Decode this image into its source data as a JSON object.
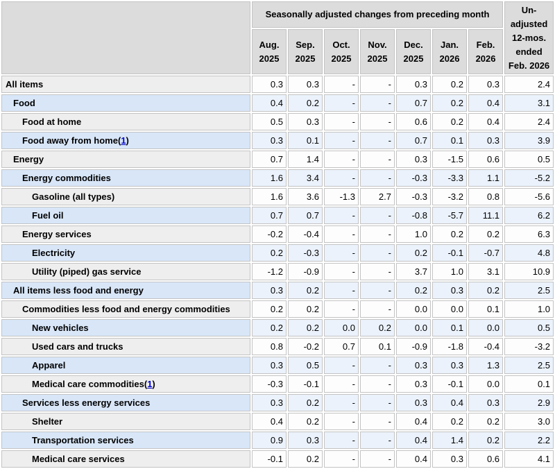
{
  "colors": {
    "header_bg": "#dcdcdc",
    "gray_label_bg": "#eeeeee",
    "gray_data_bg": "#fdfdfd",
    "blue_label_bg": "#d8e6f8",
    "blue_data_bg": "#ebf2fb",
    "border": "#c3c3c3",
    "text": "#000000",
    "link": "#0000cc"
  },
  "chart_data": {
    "type": "table",
    "title": "Seasonally adjusted changes from preceding month",
    "column_group_header": "Seasonally adjusted changes from preceding month",
    "last_column_header": "Un-adjusted 12-mos. ended Feb. 2026",
    "month_columns": [
      "Aug. 2025",
      "Sep. 2025",
      "Oct. 2025",
      "Nov. 2025",
      "Dec. 2025",
      "Jan. 2026",
      "Feb. 2026"
    ],
    "rows": [
      {
        "label": "All items",
        "indent": 0,
        "values": [
          "0.3",
          "0.3",
          "-",
          "-",
          "0.3",
          "0.2",
          "0.3",
          "2.4"
        ]
      },
      {
        "label": "Food",
        "indent": 1,
        "values": [
          "0.4",
          "0.2",
          "-",
          "-",
          "0.7",
          "0.2",
          "0.4",
          "3.1"
        ]
      },
      {
        "label": "Food at home",
        "indent": 2,
        "values": [
          "0.5",
          "0.3",
          "-",
          "-",
          "0.6",
          "0.2",
          "0.4",
          "2.4"
        ]
      },
      {
        "label": "Food away from home",
        "footnote": "1",
        "indent": 2,
        "values": [
          "0.3",
          "0.1",
          "-",
          "-",
          "0.7",
          "0.1",
          "0.3",
          "3.9"
        ]
      },
      {
        "label": "Energy",
        "indent": 1,
        "values": [
          "0.7",
          "1.4",
          "-",
          "-",
          "0.3",
          "-1.5",
          "0.6",
          "0.5"
        ]
      },
      {
        "label": "Energy commodities",
        "indent": 2,
        "values": [
          "1.6",
          "3.4",
          "-",
          "-",
          "-0.3",
          "-3.3",
          "1.1",
          "-5.2"
        ]
      },
      {
        "label": "Gasoline (all types)",
        "indent": 3,
        "values": [
          "1.6",
          "3.6",
          "-1.3",
          "2.7",
          "-0.3",
          "-3.2",
          "0.8",
          "-5.6"
        ]
      },
      {
        "label": "Fuel oil",
        "indent": 3,
        "values": [
          "0.7",
          "0.7",
          "-",
          "-",
          "-0.8",
          "-5.7",
          "11.1",
          "6.2"
        ]
      },
      {
        "label": "Energy services",
        "indent": 2,
        "values": [
          "-0.2",
          "-0.4",
          "-",
          "-",
          "1.0",
          "0.2",
          "0.2",
          "6.3"
        ]
      },
      {
        "label": "Electricity",
        "indent": 3,
        "values": [
          "0.2",
          "-0.3",
          "-",
          "-",
          "0.2",
          "-0.1",
          "-0.7",
          "4.8"
        ]
      },
      {
        "label": "Utility (piped) gas service",
        "indent": 3,
        "values": [
          "-1.2",
          "-0.9",
          "-",
          "-",
          "3.7",
          "1.0",
          "3.1",
          "10.9"
        ]
      },
      {
        "label": "All items less food and energy",
        "indent": 1,
        "values": [
          "0.3",
          "0.2",
          "-",
          "-",
          "0.2",
          "0.3",
          "0.2",
          "2.5"
        ]
      },
      {
        "label": "Commodities less food and energy commodities",
        "indent": 2,
        "values": [
          "0.2",
          "0.2",
          "-",
          "-",
          "0.0",
          "0.0",
          "0.1",
          "1.0"
        ]
      },
      {
        "label": "New vehicles",
        "indent": 3,
        "values": [
          "0.2",
          "0.2",
          "0.0",
          "0.2",
          "0.0",
          "0.1",
          "0.0",
          "0.5"
        ]
      },
      {
        "label": "Used cars and trucks",
        "indent": 3,
        "values": [
          "0.8",
          "-0.2",
          "0.7",
          "0.1",
          "-0.9",
          "-1.8",
          "-0.4",
          "-3.2"
        ]
      },
      {
        "label": "Apparel",
        "indent": 3,
        "values": [
          "0.3",
          "0.5",
          "-",
          "-",
          "0.3",
          "0.3",
          "1.3",
          "2.5"
        ]
      },
      {
        "label": "Medical care commodities",
        "footnote": "1",
        "indent": 3,
        "values": [
          "-0.3",
          "-0.1",
          "-",
          "-",
          "0.3",
          "-0.1",
          "0.0",
          "0.1"
        ]
      },
      {
        "label": "Services less energy services",
        "indent": 2,
        "values": [
          "0.3",
          "0.2",
          "-",
          "-",
          "0.3",
          "0.4",
          "0.3",
          "2.9"
        ]
      },
      {
        "label": "Shelter",
        "indent": 3,
        "values": [
          "0.4",
          "0.2",
          "-",
          "-",
          "0.4",
          "0.2",
          "0.2",
          "3.0"
        ]
      },
      {
        "label": "Transportation services",
        "indent": 3,
        "values": [
          "0.9",
          "0.3",
          "-",
          "-",
          "0.4",
          "1.4",
          "0.2",
          "2.2"
        ]
      },
      {
        "label": "Medical care services",
        "indent": 3,
        "values": [
          "-0.1",
          "0.2",
          "-",
          "-",
          "0.4",
          "0.3",
          "0.6",
          "4.1"
        ]
      }
    ]
  }
}
